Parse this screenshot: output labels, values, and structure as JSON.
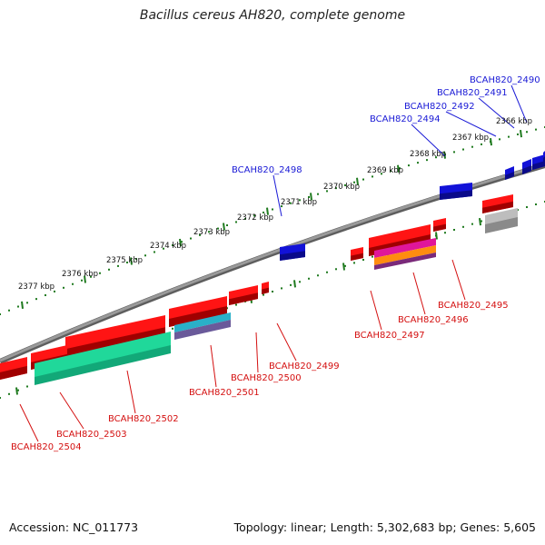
{
  "title": "Bacillus cereus AH820, complete genome",
  "footer": {
    "accession": "Accession: NC_011773",
    "stats": "Topology: linear; Length: 5,302,683 bp; Genes: 5,605"
  },
  "colors": {
    "forward_label": "#1a1ad6",
    "reverse_label": "#d41010",
    "backbone": "#808080",
    "ruler_dots": "#1f7a1f"
  },
  "kbp_ticks": [
    "2366 kbp",
    "2367 kbp",
    "2368 kbp",
    "2369 kbp",
    "2370 kbp",
    "2371 kbp",
    "2372 kbp",
    "2373 kbp",
    "2374 kbp",
    "2375 kbp",
    "2376 kbp",
    "2377 kbp"
  ],
  "forward_gene_labels": [
    "BCAH820_2490",
    "BCAH820_2491",
    "BCAH820_2492",
    "BCAH820_2494",
    "BCAH820_2498"
  ],
  "reverse_gene_labels": [
    "BCAH820_2495",
    "BCAH820_2496",
    "BCAH820_2497",
    "BCAH820_2499",
    "BCAH820_2500",
    "BCAH820_2501",
    "BCAH820_2502",
    "BCAH820_2503",
    "BCAH820_2504"
  ]
}
